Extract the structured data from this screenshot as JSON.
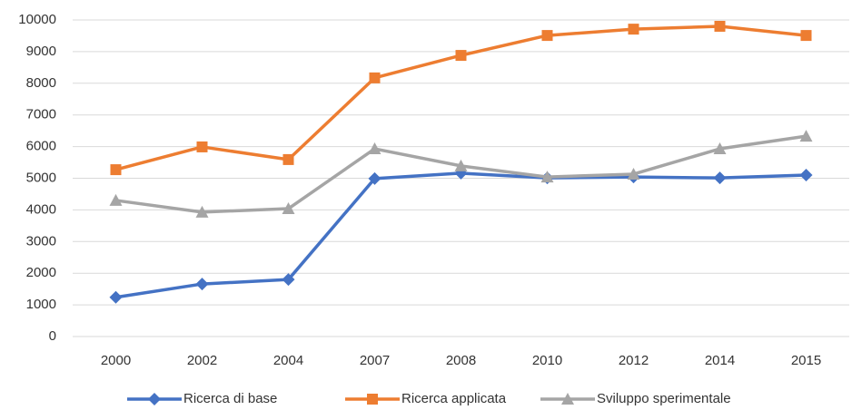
{
  "chart_data": {
    "type": "line",
    "categories": [
      "2000",
      "2002",
      "2004",
      "2007",
      "2008",
      "2010",
      "2012",
      "2014",
      "2015"
    ],
    "series": [
      {
        "name": "Ricerca di base",
        "color": "#4472c4",
        "marker": "diamond",
        "values": [
          1240,
          1660,
          1800,
          4990,
          5160,
          5010,
          5040,
          5010,
          5100
        ]
      },
      {
        "name": "Ricerca applicata",
        "color": "#ed7d31",
        "marker": "square",
        "values": [
          5270,
          5990,
          5590,
          8170,
          8880,
          9510,
          9710,
          9800,
          9510
        ]
      },
      {
        "name": "Sviluppo sperimentale",
        "color": "#a5a5a5",
        "marker": "triangle",
        "values": [
          4300,
          3930,
          4040,
          5930,
          5390,
          5040,
          5130,
          5930,
          6330
        ]
      }
    ],
    "ylim": [
      0,
      10000
    ],
    "yticks": [
      0,
      1000,
      2000,
      3000,
      4000,
      5000,
      6000,
      7000,
      8000,
      9000,
      10000
    ],
    "grid": true,
    "legend": "bottom"
  }
}
